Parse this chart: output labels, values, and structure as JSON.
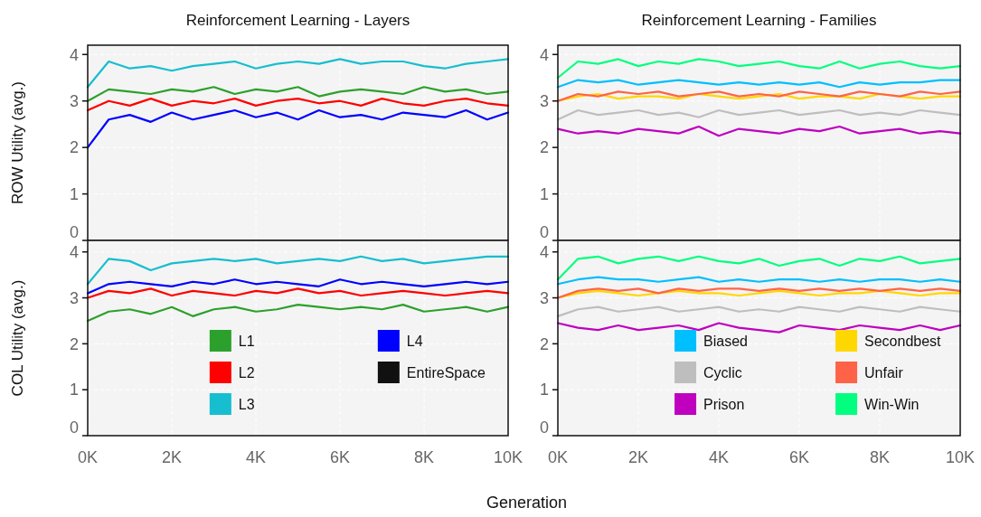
{
  "chart_data": [
    {
      "type": "line",
      "title": "Reinforcement Learning - Layers",
      "ylabel": "ROW Utility (avg.)",
      "x": [
        0,
        500,
        1000,
        1500,
        2000,
        2500,
        3000,
        3500,
        4000,
        4500,
        5000,
        5500,
        6000,
        6500,
        7000,
        7500,
        8000,
        8500,
        9000,
        9500,
        10000
      ],
      "xlim": [
        0,
        10000
      ],
      "xticks": [
        {
          "value": 0,
          "label": null
        },
        {
          "value": 2000,
          "label": null
        },
        {
          "value": 4000,
          "label": null
        },
        {
          "value": 6000,
          "label": null
        },
        {
          "value": 8000,
          "label": null
        },
        {
          "value": 10000,
          "label": null
        }
      ],
      "ylim": [
        0,
        4.2
      ],
      "yticks": [
        0,
        1,
        2,
        3,
        4
      ],
      "grid": true,
      "legend": false,
      "tick_labels": "y",
      "series": [
        {
          "color": "#2ca02c",
          "values": [
            3.0,
            3.25,
            3.2,
            3.15,
            3.25,
            3.2,
            3.3,
            3.15,
            3.25,
            3.2,
            3.3,
            3.1,
            3.2,
            3.25,
            3.2,
            3.15,
            3.3,
            3.2,
            3.25,
            3.15,
            3.2
          ]
        },
        {
          "color": "#ff0000",
          "values": [
            2.8,
            3.0,
            2.9,
            3.05,
            2.9,
            3.0,
            2.95,
            3.05,
            2.9,
            3.0,
            3.05,
            2.95,
            3.0,
            2.9,
            3.05,
            2.95,
            2.9,
            3.0,
            3.05,
            2.95,
            2.9
          ]
        },
        {
          "color": "#17becf",
          "values": [
            3.3,
            3.85,
            3.7,
            3.75,
            3.65,
            3.75,
            3.8,
            3.85,
            3.7,
            3.8,
            3.85,
            3.8,
            3.9,
            3.8,
            3.85,
            3.85,
            3.75,
            3.7,
            3.8,
            3.85,
            3.9
          ]
        },
        {
          "color": "#0000ff",
          "values": [
            2.0,
            2.6,
            2.7,
            2.55,
            2.75,
            2.6,
            2.7,
            2.8,
            2.65,
            2.75,
            2.6,
            2.8,
            2.65,
            2.7,
            2.6,
            2.75,
            2.7,
            2.65,
            2.8,
            2.6,
            2.75
          ]
        }
      ]
    },
    {
      "type": "line",
      "title": "Reinforcement Learning - Families",
      "x": [
        0,
        500,
        1000,
        1500,
        2000,
        2500,
        3000,
        3500,
        4000,
        4500,
        5000,
        5500,
        6000,
        6500,
        7000,
        7500,
        8000,
        8500,
        9000,
        9500,
        10000
      ],
      "xlim": [
        0,
        10000
      ],
      "xticks": [
        {
          "value": 0,
          "label": null
        },
        {
          "value": 2000,
          "label": null
        },
        {
          "value": 4000,
          "label": null
        },
        {
          "value": 6000,
          "label": null
        },
        {
          "value": 8000,
          "label": null
        },
        {
          "value": 10000,
          "label": null
        }
      ],
      "ylim": [
        0,
        4.2
      ],
      "yticks": [
        0,
        1,
        2,
        3,
        4
      ],
      "grid": true,
      "legend": false,
      "tick_labels": "y",
      "series": [
        {
          "color": "#00bfff",
          "values": [
            3.3,
            3.45,
            3.4,
            3.45,
            3.35,
            3.4,
            3.45,
            3.4,
            3.35,
            3.4,
            3.35,
            3.4,
            3.35,
            3.4,
            3.3,
            3.4,
            3.35,
            3.4,
            3.4,
            3.45,
            3.45
          ]
        },
        {
          "color": "#bebebe",
          "values": [
            2.6,
            2.8,
            2.7,
            2.75,
            2.8,
            2.7,
            2.75,
            2.65,
            2.8,
            2.7,
            2.75,
            2.8,
            2.7,
            2.75,
            2.8,
            2.7,
            2.75,
            2.7,
            2.8,
            2.75,
            2.7
          ]
        },
        {
          "color": "#bf00bf",
          "values": [
            2.4,
            2.3,
            2.35,
            2.3,
            2.4,
            2.35,
            2.3,
            2.45,
            2.25,
            2.4,
            2.35,
            2.3,
            2.4,
            2.35,
            2.45,
            2.3,
            2.35,
            2.4,
            2.3,
            2.35,
            2.3
          ]
        },
        {
          "color": "#ffd700",
          "values": [
            3.0,
            3.1,
            3.15,
            3.05,
            3.1,
            3.1,
            3.05,
            3.15,
            3.1,
            3.05,
            3.1,
            3.15,
            3.05,
            3.1,
            3.1,
            3.05,
            3.15,
            3.1,
            3.05,
            3.1,
            3.1
          ]
        },
        {
          "color": "#ff6347",
          "values": [
            3.0,
            3.15,
            3.1,
            3.2,
            3.15,
            3.2,
            3.1,
            3.15,
            3.2,
            3.1,
            3.15,
            3.1,
            3.2,
            3.15,
            3.1,
            3.2,
            3.15,
            3.1,
            3.2,
            3.15,
            3.2
          ]
        },
        {
          "color": "#00ff7f",
          "values": [
            3.5,
            3.85,
            3.8,
            3.9,
            3.75,
            3.85,
            3.8,
            3.9,
            3.85,
            3.75,
            3.8,
            3.85,
            3.75,
            3.7,
            3.85,
            3.7,
            3.8,
            3.85,
            3.75,
            3.7,
            3.75
          ]
        }
      ]
    },
    {
      "type": "line",
      "ylabel": "COL Utility (avg.)",
      "xlabel": "Generation",
      "x": [
        0,
        500,
        1000,
        1500,
        2000,
        2500,
        3000,
        3500,
        4000,
        4500,
        5000,
        5500,
        6000,
        6500,
        7000,
        7500,
        8000,
        8500,
        9000,
        9500,
        10000
      ],
      "xlim": [
        0,
        10000
      ],
      "xticks": [
        {
          "value": 0,
          "label": "0K"
        },
        {
          "value": 2000,
          "label": "2K"
        },
        {
          "value": 4000,
          "label": "4K"
        },
        {
          "value": 6000,
          "label": "6K"
        },
        {
          "value": 8000,
          "label": "8K"
        },
        {
          "value": 10000,
          "label": "10K"
        }
      ],
      "ylim": [
        0,
        4.25
      ],
      "yticks": [
        0,
        1,
        2,
        3,
        4
      ],
      "grid": true,
      "legend": "bottom",
      "series": [
        {
          "name": "L1",
          "color": "#2ca02c",
          "values": [
            2.5,
            2.7,
            2.75,
            2.65,
            2.8,
            2.6,
            2.75,
            2.8,
            2.7,
            2.75,
            2.85,
            2.8,
            2.75,
            2.8,
            2.75,
            2.85,
            2.7,
            2.75,
            2.8,
            2.7,
            2.8
          ]
        },
        {
          "name": "L2",
          "color": "#ff0000",
          "values": [
            3.0,
            3.15,
            3.1,
            3.2,
            3.05,
            3.15,
            3.1,
            3.05,
            3.15,
            3.1,
            3.2,
            3.1,
            3.15,
            3.05,
            3.1,
            3.15,
            3.1,
            3.05,
            3.1,
            3.15,
            3.1
          ]
        },
        {
          "name": "L3",
          "color": "#17becf",
          "values": [
            3.3,
            3.85,
            3.8,
            3.6,
            3.75,
            3.8,
            3.85,
            3.8,
            3.85,
            3.75,
            3.8,
            3.85,
            3.8,
            3.9,
            3.8,
            3.85,
            3.75,
            3.8,
            3.85,
            3.9,
            3.9
          ]
        },
        {
          "name": "L4",
          "color": "#0000ff",
          "values": [
            3.1,
            3.3,
            3.35,
            3.3,
            3.25,
            3.35,
            3.3,
            3.4,
            3.3,
            3.35,
            3.3,
            3.25,
            3.4,
            3.3,
            3.35,
            3.3,
            3.25,
            3.3,
            3.35,
            3.3,
            3.35
          ]
        },
        {
          "name": "EntireSpace",
          "color": "#111111",
          "values": [
            null,
            null,
            null,
            null,
            null,
            null,
            null,
            null,
            null,
            null,
            null,
            null,
            null,
            null,
            null,
            null,
            null,
            null,
            null,
            null,
            null
          ]
        }
      ]
    },
    {
      "type": "line",
      "x": [
        0,
        500,
        1000,
        1500,
        2000,
        2500,
        3000,
        3500,
        4000,
        4500,
        5000,
        5500,
        6000,
        6500,
        7000,
        7500,
        8000,
        8500,
        9000,
        9500,
        10000
      ],
      "xlim": [
        0,
        10000
      ],
      "xticks": [
        {
          "value": 0,
          "label": "0K"
        },
        {
          "value": 2000,
          "label": "2K"
        },
        {
          "value": 4000,
          "label": "4K"
        },
        {
          "value": 6000,
          "label": "6K"
        },
        {
          "value": 8000,
          "label": "8K"
        },
        {
          "value": 10000,
          "label": "10K"
        }
      ],
      "ylim": [
        0,
        4.25
      ],
      "yticks": [
        0,
        1,
        2,
        3,
        4
      ],
      "grid": true,
      "legend": "bottom",
      "series": [
        {
          "name": "Biased",
          "color": "#00bfff",
          "values": [
            3.3,
            3.4,
            3.45,
            3.4,
            3.4,
            3.35,
            3.4,
            3.45,
            3.35,
            3.4,
            3.35,
            3.4,
            3.4,
            3.35,
            3.4,
            3.35,
            3.4,
            3.4,
            3.35,
            3.4,
            3.35
          ]
        },
        {
          "name": "Cyclic",
          "color": "#bebebe",
          "values": [
            2.6,
            2.75,
            2.8,
            2.7,
            2.75,
            2.8,
            2.7,
            2.75,
            2.8,
            2.7,
            2.75,
            2.7,
            2.8,
            2.75,
            2.7,
            2.8,
            2.75,
            2.7,
            2.8,
            2.75,
            2.7
          ]
        },
        {
          "name": "Prison",
          "color": "#bf00bf",
          "values": [
            2.45,
            2.35,
            2.3,
            2.4,
            2.3,
            2.35,
            2.4,
            2.3,
            2.45,
            2.35,
            2.3,
            2.25,
            2.4,
            2.35,
            2.3,
            2.4,
            2.35,
            2.3,
            2.4,
            2.3,
            2.4
          ]
        },
        {
          "name": "Secondbest",
          "color": "#ffd700",
          "values": [
            3.0,
            3.1,
            3.15,
            3.1,
            3.05,
            3.1,
            3.15,
            3.1,
            3.1,
            3.05,
            3.1,
            3.15,
            3.1,
            3.05,
            3.1,
            3.1,
            3.15,
            3.1,
            3.05,
            3.1,
            3.1
          ]
        },
        {
          "name": "Unfair",
          "color": "#ff6347",
          "values": [
            3.0,
            3.15,
            3.2,
            3.15,
            3.2,
            3.1,
            3.2,
            3.15,
            3.2,
            3.2,
            3.15,
            3.2,
            3.15,
            3.2,
            3.15,
            3.2,
            3.15,
            3.2,
            3.15,
            3.2,
            3.15
          ]
        },
        {
          "name": "Win-Win",
          "color": "#00ff7f",
          "values": [
            3.4,
            3.85,
            3.9,
            3.75,
            3.85,
            3.9,
            3.8,
            3.9,
            3.8,
            3.75,
            3.85,
            3.7,
            3.8,
            3.85,
            3.7,
            3.85,
            3.8,
            3.9,
            3.75,
            3.8,
            3.85
          ]
        }
      ]
    }
  ]
}
